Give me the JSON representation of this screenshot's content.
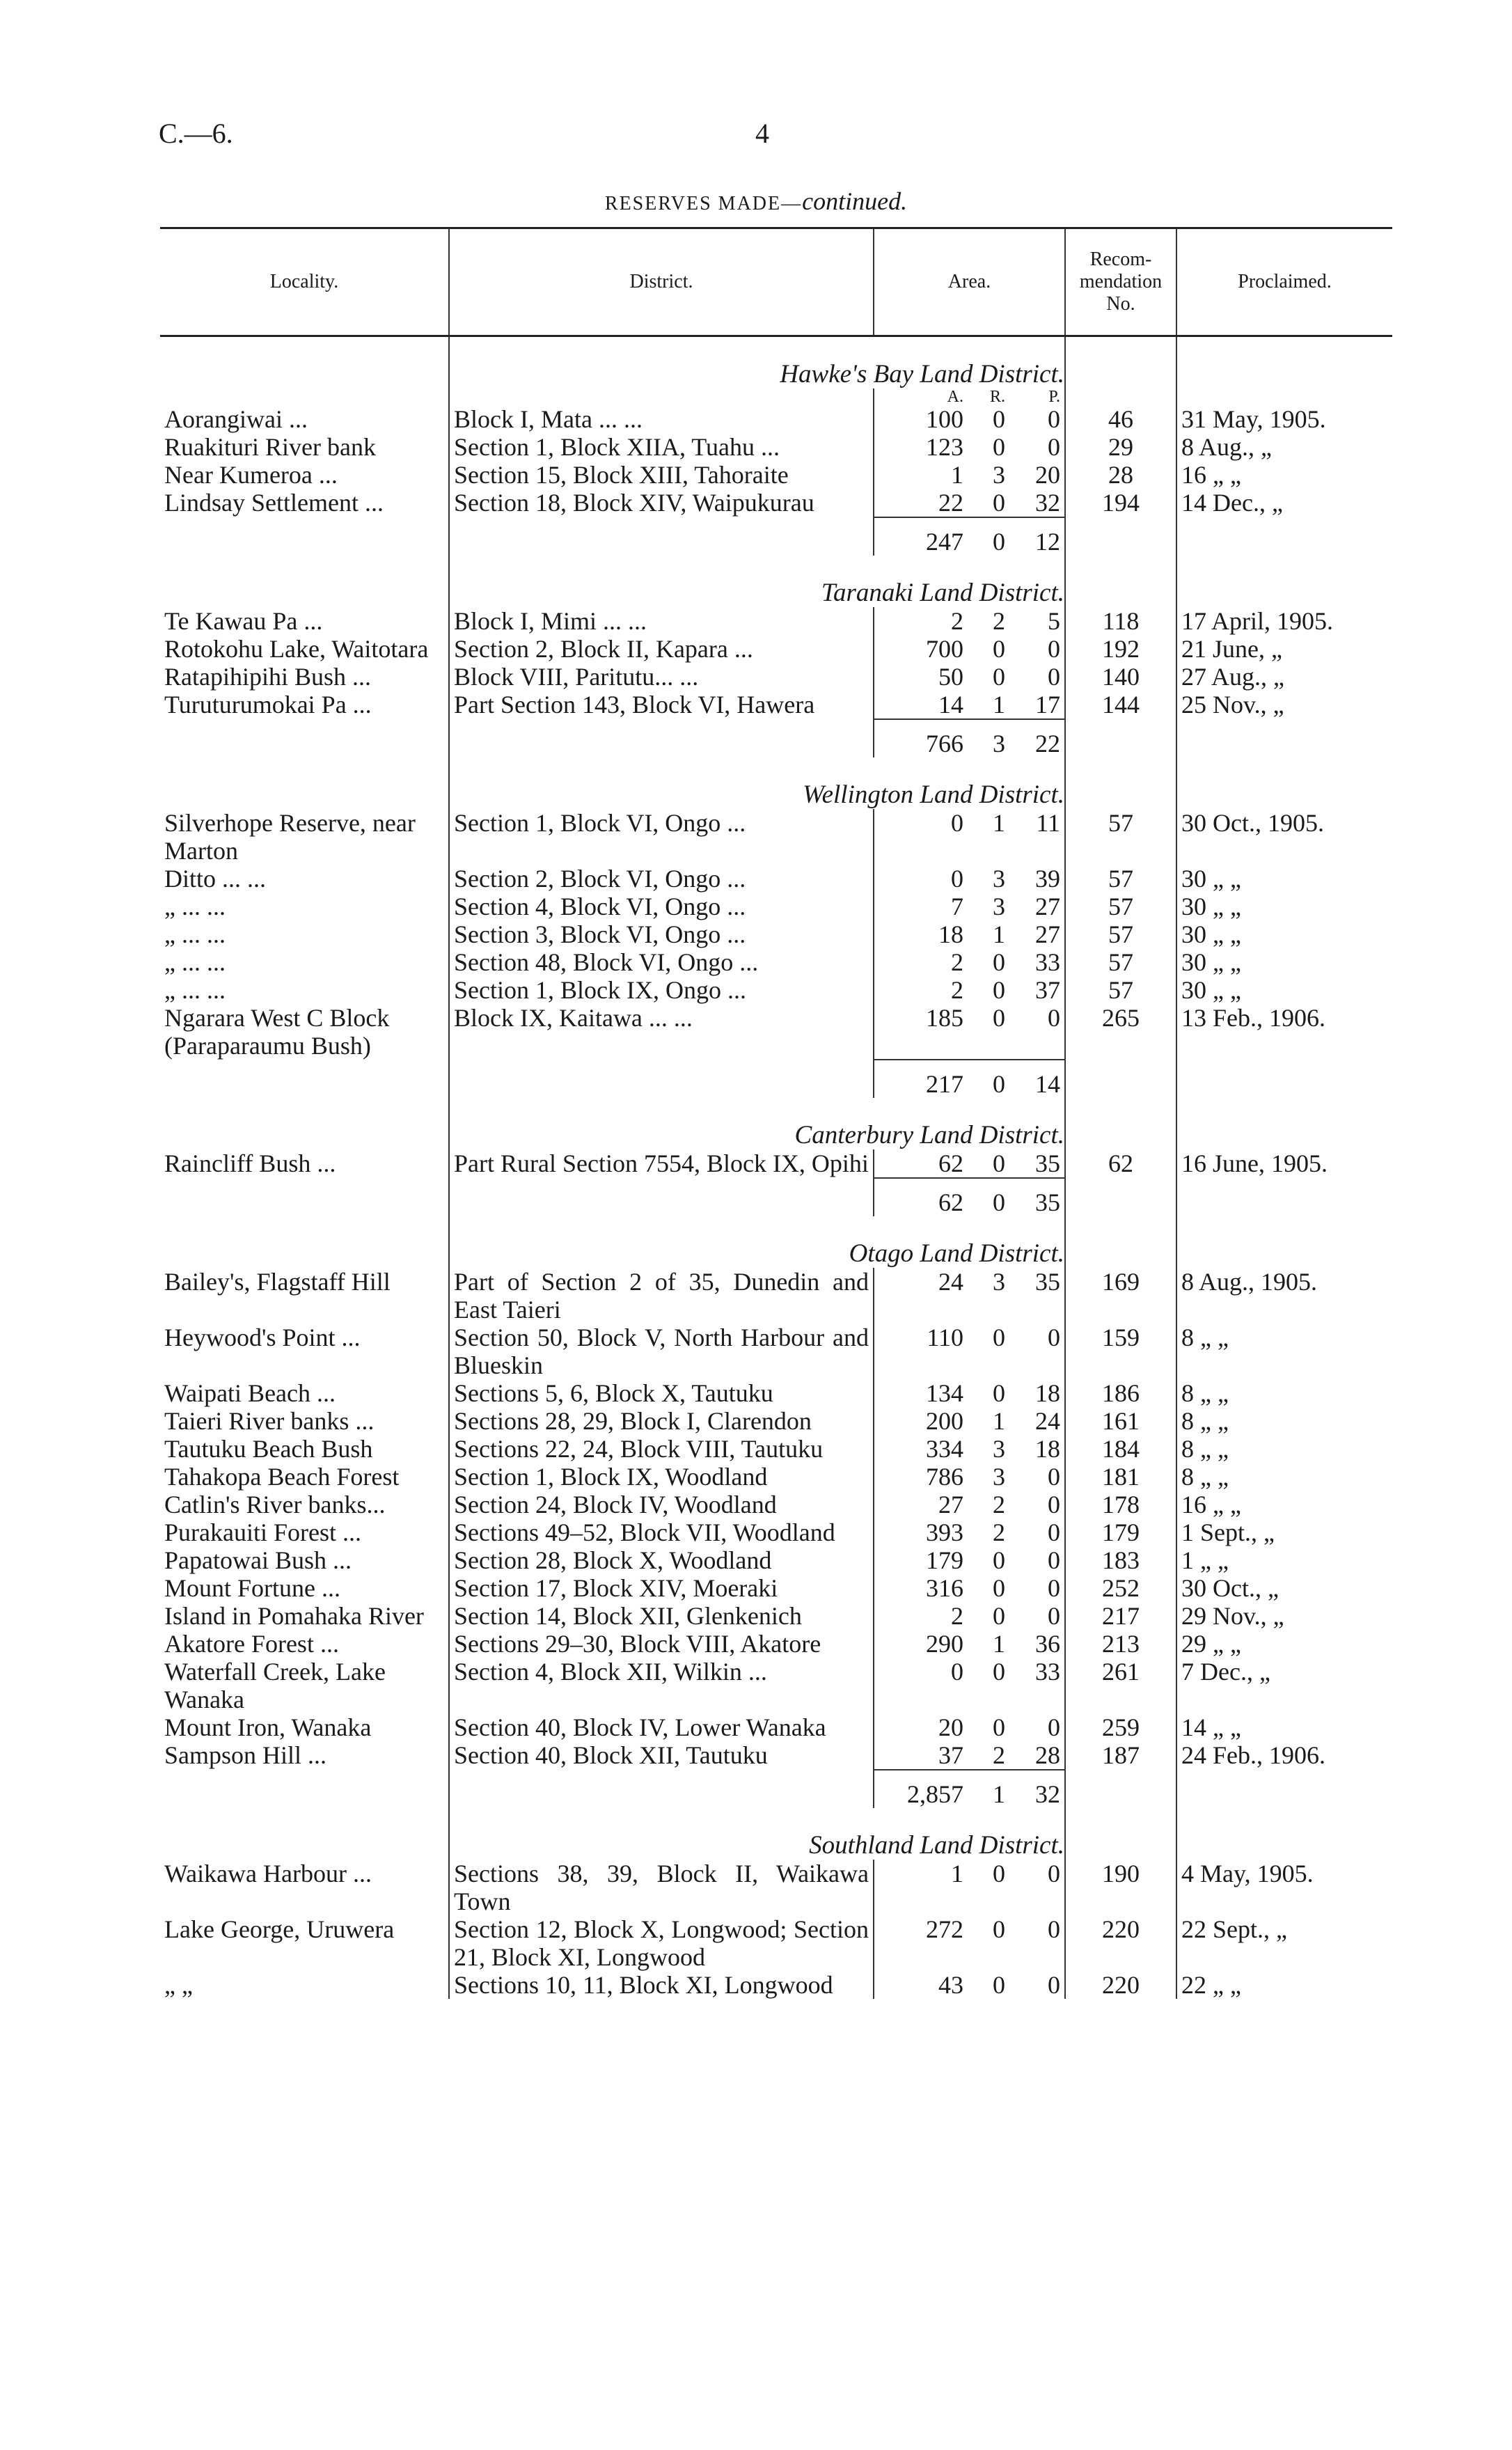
{
  "header": {
    "code": "C.—6.",
    "page": "4",
    "title": "RESERVES MADE—",
    "title_italic": "continued."
  },
  "columns": {
    "locality": "Locality.",
    "district": "District.",
    "area": "Area.",
    "recommendation": [
      "Recom-",
      "mendation",
      "No."
    ],
    "proclaimed": "Proclaimed."
  },
  "area_units": [
    "A.",
    "R.",
    "P."
  ],
  "sections": [
    {
      "heading": "Hawke's Bay Land District.",
      "rows": [
        {
          "locality": "Aorangiwai ...",
          "district": "Block I, Mata ... ...",
          "area": [
            "100",
            "0",
            "0"
          ],
          "rec": "46",
          "proclaimed": "31 May, 1905."
        },
        {
          "locality": "Ruakituri River bank",
          "district": "Section 1, Block XIIA, Tuahu ...",
          "area": [
            "123",
            "0",
            "0"
          ],
          "rec": "29",
          "proclaimed": "8 Aug., „"
        },
        {
          "locality": "Near Kumeroa ...",
          "district": "Section 15, Block XIII, Tahoraite",
          "area": [
            "1",
            "3",
            "20"
          ],
          "rec": "28",
          "proclaimed": "16 „ „"
        },
        {
          "locality": "Lindsay Settlement ...",
          "district": "Section 18, Block XIV, Waipukurau",
          "area": [
            "22",
            "0",
            "32"
          ],
          "rec": "194",
          "proclaimed": "14 Dec., „"
        }
      ],
      "total": [
        "247",
        "0",
        "12"
      ]
    },
    {
      "heading": "Taranaki Land District.",
      "rows": [
        {
          "locality": "Te Kawau Pa ...",
          "district": "Block I, Mimi ... ...",
          "area": [
            "2",
            "2",
            "5"
          ],
          "rec": "118",
          "proclaimed": "17 April, 1905."
        },
        {
          "locality": "Rotokohu Lake, Waitotara",
          "district": "Section 2, Block II, Kapara ...",
          "area": [
            "700",
            "0",
            "0"
          ],
          "rec": "192",
          "proclaimed": "21 June, „"
        },
        {
          "locality": "Ratapihipihi Bush ...",
          "district": "Block VIII, Paritutu... ...",
          "area": [
            "50",
            "0",
            "0"
          ],
          "rec": "140",
          "proclaimed": "27 Aug., „"
        },
        {
          "locality": "Turuturumokai Pa ...",
          "district": "Part Section 143, Block VI, Hawera",
          "area": [
            "14",
            "1",
            "17"
          ],
          "rec": "144",
          "proclaimed": "25 Nov., „"
        }
      ],
      "total": [
        "766",
        "3",
        "22"
      ]
    },
    {
      "heading": "Wellington Land District.",
      "rows": [
        {
          "locality": "Silverhope Reserve, near Marton",
          "district": "Section 1, Block VI, Ongo ...",
          "area": [
            "0",
            "1",
            "11"
          ],
          "rec": "57",
          "proclaimed": "30 Oct., 1905."
        },
        {
          "locality": "Ditto ... ...",
          "district": "Section 2, Block VI, Ongo ...",
          "area": [
            "0",
            "3",
            "39"
          ],
          "rec": "57",
          "proclaimed": "30 „ „"
        },
        {
          "locality": "„ ... ...",
          "district": "Section 4, Block VI, Ongo ...",
          "area": [
            "7",
            "3",
            "27"
          ],
          "rec": "57",
          "proclaimed": "30 „ „"
        },
        {
          "locality": "„ ... ...",
          "district": "Section 3, Block VI, Ongo ...",
          "area": [
            "18",
            "1",
            "27"
          ],
          "rec": "57",
          "proclaimed": "30 „ „"
        },
        {
          "locality": "„ ... ...",
          "district": "Section 48, Block VI, Ongo ...",
          "area": [
            "2",
            "0",
            "33"
          ],
          "rec": "57",
          "proclaimed": "30 „ „"
        },
        {
          "locality": "„ ... ...",
          "district": "Section 1, Block IX, Ongo ...",
          "area": [
            "2",
            "0",
            "37"
          ],
          "rec": "57",
          "proclaimed": "30 „ „"
        },
        {
          "locality": "Ngarara West C Block (Paraparaumu Bush)",
          "district": "Block IX, Kaitawa ... ...",
          "area": [
            "185",
            "0",
            "0"
          ],
          "rec": "265",
          "proclaimed": "13 Feb., 1906."
        }
      ],
      "total": [
        "217",
        "0",
        "14"
      ]
    },
    {
      "heading": "Canterbury Land District.",
      "rows": [
        {
          "locality": "Raincliff Bush ...",
          "district": "Part Rural Section 7554, Block IX, Opihi",
          "area": [
            "62",
            "0",
            "35"
          ],
          "rec": "62",
          "proclaimed": "16 June, 1905."
        }
      ],
      "total": [
        "62",
        "0",
        "35"
      ]
    },
    {
      "heading": "Otago Land District.",
      "rows": [
        {
          "locality": "Bailey's, Flagstaff Hill",
          "district": "Part of Section 2 of 35, Dunedin and East Taieri",
          "area": [
            "24",
            "3",
            "35"
          ],
          "rec": "169",
          "proclaimed": "8 Aug., 1905."
        },
        {
          "locality": "Heywood's Point ...",
          "district": "Section 50, Block V, North Harbour and Blueskin",
          "area": [
            "110",
            "0",
            "0"
          ],
          "rec": "159",
          "proclaimed": "8 „ „"
        },
        {
          "locality": "Waipati Beach ...",
          "district": "Sections 5, 6, Block X, Tautuku",
          "area": [
            "134",
            "0",
            "18"
          ],
          "rec": "186",
          "proclaimed": "8 „ „"
        },
        {
          "locality": "Taieri River banks ...",
          "district": "Sections 28, 29, Block I, Clarendon",
          "area": [
            "200",
            "1",
            "24"
          ],
          "rec": "161",
          "proclaimed": "8 „ „"
        },
        {
          "locality": "Tautuku Beach Bush",
          "district": "Sections 22, 24, Block VIII, Tautuku",
          "area": [
            "334",
            "3",
            "18"
          ],
          "rec": "184",
          "proclaimed": "8 „ „"
        },
        {
          "locality": "Tahakopa Beach Forest",
          "district": "Section 1, Block IX, Woodland",
          "area": [
            "786",
            "3",
            "0"
          ],
          "rec": "181",
          "proclaimed": "8 „ „"
        },
        {
          "locality": "Catlin's River banks...",
          "district": "Section 24, Block IV, Woodland",
          "area": [
            "27",
            "2",
            "0"
          ],
          "rec": "178",
          "proclaimed": "16 „ „"
        },
        {
          "locality": "Purakauiti Forest ...",
          "district": "Sections 49–52, Block VII, Woodland",
          "area": [
            "393",
            "2",
            "0"
          ],
          "rec": "179",
          "proclaimed": "1 Sept., „"
        },
        {
          "locality": "Papatowai Bush ...",
          "district": "Section 28, Block X, Woodland",
          "area": [
            "179",
            "0",
            "0"
          ],
          "rec": "183",
          "proclaimed": "1 „ „"
        },
        {
          "locality": "Mount Fortune ...",
          "district": "Section 17, Block XIV, Moeraki",
          "area": [
            "316",
            "0",
            "0"
          ],
          "rec": "252",
          "proclaimed": "30 Oct., „"
        },
        {
          "locality": "Island in Pomahaka River",
          "district": "Section 14, Block XII, Glenkenich",
          "area": [
            "2",
            "0",
            "0"
          ],
          "rec": "217",
          "proclaimed": "29 Nov., „"
        },
        {
          "locality": "Akatore Forest ...",
          "district": "Sections 29–30, Block VIII, Akatore",
          "area": [
            "290",
            "1",
            "36"
          ],
          "rec": "213",
          "proclaimed": "29 „ „"
        },
        {
          "locality": "Waterfall Creek, Lake Wanaka",
          "district": "Section 4, Block XII, Wilkin ...",
          "area": [
            "0",
            "0",
            "33"
          ],
          "rec": "261",
          "proclaimed": "7 Dec., „"
        },
        {
          "locality": "Mount Iron, Wanaka",
          "district": "Section 40, Block IV, Lower Wanaka",
          "area": [
            "20",
            "0",
            "0"
          ],
          "rec": "259",
          "proclaimed": "14 „ „"
        },
        {
          "locality": "Sampson Hill ...",
          "district": "Section 40, Block XII, Tautuku",
          "area": [
            "37",
            "2",
            "28"
          ],
          "rec": "187",
          "proclaimed": "24 Feb., 1906."
        }
      ],
      "total": [
        "2,857",
        "1",
        "32"
      ]
    },
    {
      "heading": "Southland Land District.",
      "rows": [
        {
          "locality": "Waikawa Harbour ...",
          "district": "Sections 38, 39, Block II, Waikawa Town",
          "area": [
            "1",
            "0",
            "0"
          ],
          "rec": "190",
          "proclaimed": "4 May, 1905."
        },
        {
          "locality": "Lake George, Uruwera",
          "district": "Section 12, Block X, Longwood; Section 21, Block XI, Longwood",
          "area": [
            "272",
            "0",
            "0"
          ],
          "rec": "220",
          "proclaimed": "22 Sept., „"
        },
        {
          "locality": "„ „",
          "district": "Sections 10, 11, Block XI, Longwood",
          "area": [
            "43",
            "0",
            "0"
          ],
          "rec": "220",
          "proclaimed": "22 „ „"
        }
      ]
    }
  ]
}
